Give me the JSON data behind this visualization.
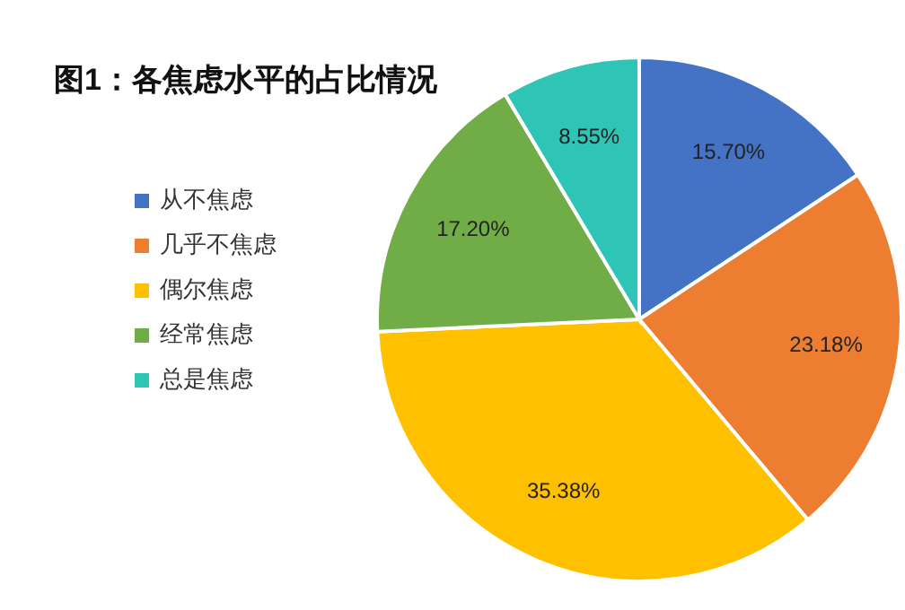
{
  "chart_data": {
    "type": "pie",
    "title": "图1：各焦虑水平的占比情况",
    "categories": [
      "从不焦虑",
      "几乎不焦虑",
      "偶尔焦虑",
      "经常焦虑",
      "总是焦虑"
    ],
    "values": [
      15.7,
      23.18,
      35.38,
      17.2,
      8.55
    ],
    "value_labels": [
      "15.70%",
      "23.18%",
      "35.38%",
      "17.20%",
      "8.55%"
    ],
    "colors": [
      "#4472c4",
      "#ed7d31",
      "#ffc000",
      "#70ad47",
      "#2ec4b6"
    ],
    "legend": "left"
  }
}
